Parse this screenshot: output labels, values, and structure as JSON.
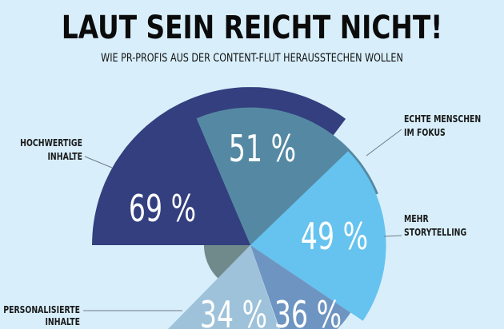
{
  "chart_data": {
    "type": "pie",
    "variant": "radial-sector (radius scaled by value)",
    "title": "LAUT SEIN REICHT NICHT!",
    "subtitle": "WIE PR-PROFIS AUS DER CONTENT-FLUT HERAUSSTECHEN WOLLEN",
    "slices": [
      {
        "label": "HOCHWERTIGE INHALTE",
        "label_lines": [
          "HOCHWERTIGE",
          "INHALTE"
        ],
        "value": 69,
        "display": "69 %",
        "color": "#333f7e"
      },
      {
        "label": "ECHTE MENSCHEN IM FOKUS",
        "label_lines": [
          "ECHTE MENSCHEN",
          "IM FOKUS"
        ],
        "value": 51,
        "display": "51 %",
        "color": "#5589a3"
      },
      {
        "label": "MEHR STORYTELLING",
        "label_lines": [
          "MEHR",
          "STORYTELLING"
        ],
        "value": 49,
        "display": "49 %",
        "color": "#66c3ef"
      },
      {
        "label": "",
        "label_lines": [],
        "value": 36,
        "display": "36 %",
        "color": "#6e95c1"
      },
      {
        "label": "PERSONALISIERTE INHALTE",
        "label_lines": [
          "PERSONALISIERTE",
          "INHALTE"
        ],
        "value": 34,
        "display": "34 %",
        "color": "#9dc2da"
      }
    ],
    "background_color": "#d8effb",
    "legend": "none (leader-line labels)"
  }
}
